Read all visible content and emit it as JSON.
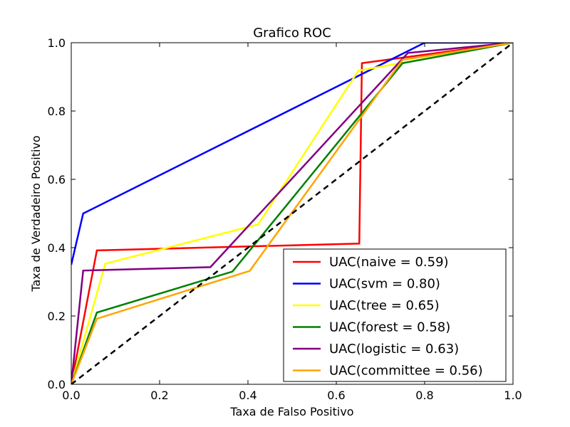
{
  "chart_data": {
    "type": "line",
    "title": "Grafico ROC",
    "xlabel": "Taxa de Falso Positivo",
    "ylabel": "Taxa de Verdadeiro Positivo",
    "xlim": [
      0.0,
      1.0
    ],
    "ylim": [
      0.0,
      1.0
    ],
    "xticks": [
      0.0,
      0.2,
      0.4,
      0.6,
      0.8,
      1.0
    ],
    "yticks": [
      0.0,
      0.2,
      0.4,
      0.6,
      0.8,
      1.0
    ],
    "xtick_labels": [
      "0.0",
      "0.2",
      "0.4",
      "0.6",
      "0.8",
      "1.0"
    ],
    "ytick_labels": [
      "0.0",
      "0.2",
      "0.4",
      "0.6",
      "0.8",
      "1.0"
    ],
    "grid": false,
    "legend_position": "lower-right",
    "series": [
      {
        "name": "UAC(naive = 0.59)",
        "color": "#ff0000",
        "x": [
          0.0,
          0.058,
          0.652,
          0.658,
          1.0
        ],
        "y": [
          0.0,
          0.392,
          0.412,
          0.94,
          1.0
        ]
      },
      {
        "name": "UAC(svm = 0.80)",
        "color": "#0000ff",
        "x": [
          0.0,
          0.027,
          0.8,
          1.0
        ],
        "y": [
          0.35,
          0.5,
          1.0,
          1.0
        ]
      },
      {
        "name": "UAC(tree = 0.65)",
        "color": "#ffff00",
        "x": [
          0.0,
          0.077,
          0.423,
          0.65,
          1.0
        ],
        "y": [
          0.0,
          0.353,
          0.468,
          0.918,
          1.0
        ]
      },
      {
        "name": "UAC(forest = 0.58)",
        "color": "#008000",
        "x": [
          0.0,
          0.058,
          0.365,
          0.75,
          1.0
        ],
        "y": [
          0.0,
          0.21,
          0.33,
          0.94,
          1.0
        ]
      },
      {
        "name": "UAC(logistic = 0.63)",
        "color": "#800080",
        "x": [
          0.0,
          0.027,
          0.315,
          0.762,
          1.0
        ],
        "y": [
          0.0,
          0.333,
          0.343,
          0.97,
          1.0
        ]
      },
      {
        "name": "UAC(committee = 0.56)",
        "color": "#ffa500",
        "x": [
          0.0,
          0.058,
          0.404,
          0.75,
          1.0
        ],
        "y": [
          0.0,
          0.192,
          0.332,
          0.95,
          1.0
        ]
      }
    ],
    "reference_line": {
      "x": [
        0.0,
        1.0
      ],
      "y": [
        0.0,
        1.0
      ],
      "color": "#000000",
      "style": "dashed"
    }
  }
}
